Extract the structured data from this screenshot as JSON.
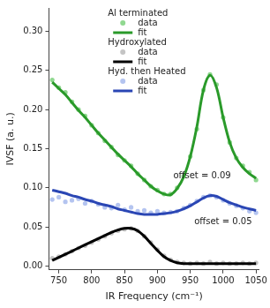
{
  "chart_data": {
    "type": "line",
    "x_label": "IR Frequency (cm⁻¹)",
    "y_label": "IVSF (a. u.)",
    "xlim": [
      735,
      1055
    ],
    "xticks": [
      750,
      800,
      850,
      900,
      950,
      1000,
      1050
    ],
    "ylim": [
      -0.005,
      0.33
    ],
    "yticks": [
      {
        "value": 0,
        "label": "0.00"
      },
      {
        "value": 0.05,
        "label": "0.05"
      },
      {
        "value": 0.1,
        "label": "0.10"
      },
      {
        "value": 0.15,
        "label": "0.15"
      },
      {
        "value": 0.2,
        "label": "0.20"
      },
      {
        "value": 0.25,
        "label": "0.25"
      },
      {
        "value": 0.3,
        "label": "0.30"
      }
    ],
    "grid": false,
    "legend": "top",
    "x": [
      740,
      750,
      760,
      770,
      780,
      790,
      800,
      810,
      820,
      830,
      840,
      850,
      860,
      870,
      880,
      890,
      900,
      910,
      920,
      930,
      940,
      950,
      960,
      970,
      980,
      990,
      1000,
      1010,
      1020,
      1030,
      1040,
      1050
    ],
    "series": [
      {
        "group": "Al terminated",
        "name": "data",
        "type": "scatter",
        "marker": "circle",
        "color": "#90d890",
        "values": [
          0.238,
          0.228,
          0.222,
          0.21,
          0.2,
          0.192,
          0.18,
          0.17,
          0.16,
          0.152,
          0.142,
          0.135,
          0.128,
          0.118,
          0.11,
          0.102,
          0.097,
          0.092,
          0.092,
          0.1,
          0.115,
          0.14,
          0.175,
          0.225,
          0.245,
          0.232,
          0.19,
          0.158,
          0.138,
          0.128,
          0.12,
          0.11
        ]
      },
      {
        "group": "Al terminated",
        "name": "fit",
        "type": "line",
        "line_style": "solid",
        "color": "#2a9a2a",
        "values": [
          0.235,
          0.227,
          0.219,
          0.209,
          0.199,
          0.19,
          0.18,
          0.17,
          0.161,
          0.152,
          0.143,
          0.135,
          0.127,
          0.118,
          0.11,
          0.102,
          0.096,
          0.092,
          0.091,
          0.099,
          0.114,
          0.14,
          0.178,
          0.225,
          0.244,
          0.228,
          0.19,
          0.158,
          0.138,
          0.126,
          0.118,
          0.112
        ]
      },
      {
        "group": "Hydroxylated",
        "name": "data",
        "type": "scatter",
        "marker": "circle",
        "color": "#c4c4c4",
        "values": [
          0.01,
          0.012,
          0.015,
          0.019,
          0.023,
          0.026,
          0.03,
          0.034,
          0.038,
          0.042,
          0.045,
          0.047,
          0.048,
          0.045,
          0.038,
          0.03,
          0.021,
          0.013,
          0.008,
          0.005,
          0.004,
          0.003,
          0.004,
          0.003,
          0.005,
          0.003,
          0.004,
          0.003,
          0.003,
          0.004,
          0.003,
          0.004
        ]
      },
      {
        "group": "Hydroxylated",
        "name": "fit",
        "type": "line",
        "line_style": "solid",
        "color": "#000000",
        "values": [
          0.007,
          0.011,
          0.015,
          0.019,
          0.023,
          0.027,
          0.031,
          0.035,
          0.039,
          0.043,
          0.046,
          0.048,
          0.048,
          0.045,
          0.038,
          0.029,
          0.02,
          0.012,
          0.007,
          0.004,
          0.003,
          0.003,
          0.003,
          0.003,
          0.003,
          0.003,
          0.003,
          0.003,
          0.003,
          0.003,
          0.003,
          0.003
        ]
      },
      {
        "group": "Hyd. then Heated",
        "name": "data",
        "type": "scatter",
        "marker": "circle",
        "color": "#b4c4f0",
        "values": [
          0.085,
          0.088,
          0.082,
          0.084,
          0.086,
          0.08,
          0.083,
          0.079,
          0.075,
          0.074,
          0.078,
          0.072,
          0.075,
          0.07,
          0.071,
          0.068,
          0.07,
          0.068,
          0.069,
          0.07,
          0.074,
          0.078,
          0.083,
          0.088,
          0.09,
          0.088,
          0.084,
          0.08,
          0.077,
          0.074,
          0.07,
          0.068
        ]
      },
      {
        "group": "Hyd. then Heated",
        "name": "fit",
        "type": "line",
        "line_style": "solid",
        "color": "#2a46b4",
        "values": [
          0.097,
          0.095,
          0.093,
          0.09,
          0.088,
          0.085,
          0.083,
          0.08,
          0.078,
          0.076,
          0.073,
          0.071,
          0.069,
          0.067,
          0.066,
          0.066,
          0.066,
          0.067,
          0.068,
          0.07,
          0.073,
          0.077,
          0.082,
          0.087,
          0.09,
          0.089,
          0.085,
          0.081,
          0.078,
          0.075,
          0.073,
          0.071
        ]
      }
    ],
    "annotations": [
      {
        "text": "offset = 0.09",
        "x": 968,
        "y": 0.115
      },
      {
        "text": "offset = 0.05",
        "x": 1000,
        "y": 0.056
      }
    ]
  }
}
